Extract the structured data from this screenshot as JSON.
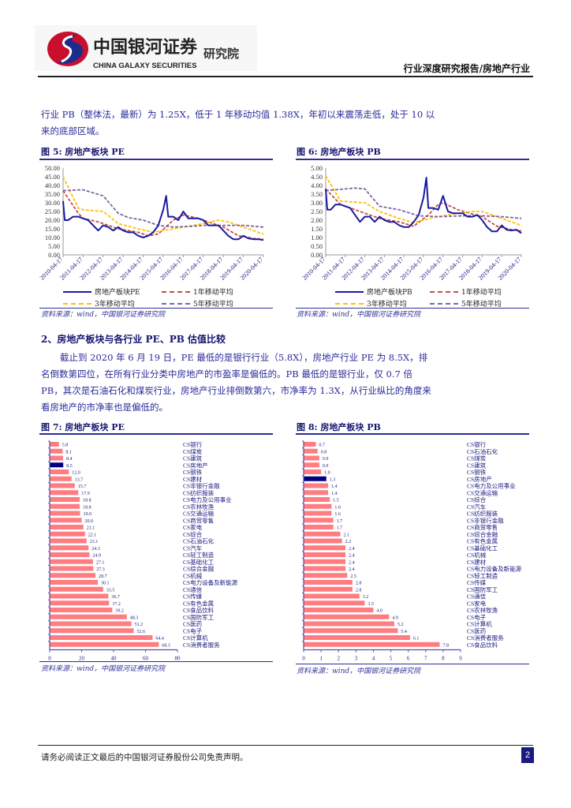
{
  "header": {
    "logo_cn": "中国银河证券",
    "logo_en": "CHINA GALAXY SECURITIES",
    "logo_sub": "研究院",
    "report_type": "行业深度研究报告/房地产行业"
  },
  "intro_paragraph": "行业 PB（整体法，最新）为 1.25X，低于 1 年移动均值 1.38X，年初以来震荡走低，处于 10 以来的底部区域。",
  "section2": {
    "heading": "2、房地产板块与各行业 PE、PB 估值比较",
    "paragraph": "截止到 2020 年 6 月 19 日，PE 最低的是银行行业（5.8X），房地产行业 PE 为 8.5X，排名倒数第四位，在所有行业分类中房地产的市盈率是偏低的。PB 最低的是银行业，仅 0.7 倍 PB，其次是石油石化和煤炭行业，房地产行业排倒数第六，市净率为 1.3X，从行业纵比的角度来看房地产的市净率也是偏低的。"
  },
  "figures": {
    "fig5_title": "图 5:  房地产板块 PE",
    "fig6_title": "图 6:  房地产板块 PB",
    "fig7_title": "图 7:  房地产板块 PE",
    "fig8_title": "图 8:  房地产板块 PB",
    "source": "资料来源：wind，中国银河证券研究院"
  },
  "colors": {
    "main_line": "#1a1aa0",
    "ma1": "#c0504d",
    "ma3": "#ffc000",
    "ma5": "#8064a2",
    "bar": "#ff7c80",
    "bar_highlight": "#000080",
    "text": "#1a1a80"
  },
  "chart_data": [
    {
      "type": "line",
      "id": "fig5",
      "xticks": [
        "2010-04-17",
        "2011-04-17",
        "2012-04-17",
        "2013-04-17",
        "2014-04-17",
        "2015-04-17",
        "2016-04-17",
        "2017-04-17",
        "2018-04-17",
        "2019-04-17",
        "2020-04-17"
      ],
      "xlim": [
        "2010-04-17",
        "2020-04-17"
      ],
      "ylim": [
        0,
        50
      ],
      "yticks": [
        "0.00",
        "5.00",
        "10.00",
        "15.00",
        "20.00",
        "25.00",
        "30.00",
        "35.00",
        "40.00",
        "45.00",
        "50.00"
      ],
      "legend_position": "bottom",
      "series": [
        {
          "name": "房地产板块PE",
          "style": "solid",
          "x": [
            "2010-04-17",
            "2010-05-17",
            "2010-07-17",
            "2010-10-17",
            "2011-01-17",
            "2011-04-17",
            "2011-07-17",
            "2011-10-17",
            "2012-01-17",
            "2012-04-17",
            "2012-07-17",
            "2012-10-17",
            "2013-01-17",
            "2013-04-17",
            "2013-07-17",
            "2013-10-17",
            "2014-01-17",
            "2014-04-17",
            "2014-07-17",
            "2014-10-17",
            "2015-01-17",
            "2015-04-17",
            "2015-06-10",
            "2015-07-17",
            "2015-10-17",
            "2016-01-17",
            "2016-04-17",
            "2016-07-17",
            "2016-10-17",
            "2017-01-17",
            "2017-04-17",
            "2017-07-17",
            "2017-10-17",
            "2018-01-17",
            "2018-04-17",
            "2018-07-17",
            "2018-10-17",
            "2019-01-17",
            "2019-04-17",
            "2019-07-17",
            "2019-10-17",
            "2020-01-17",
            "2020-04-17"
          ],
          "y": [
            31,
            20,
            20,
            22,
            22,
            21,
            20,
            17,
            14,
            17,
            16,
            14,
            16,
            14,
            13,
            13,
            11,
            10,
            11,
            13,
            17,
            26,
            34,
            22,
            22,
            20,
            25,
            21,
            21,
            21,
            20,
            17,
            17,
            17,
            14,
            11,
            9,
            9,
            11,
            9.5,
            9,
            9,
            8.5
          ]
        },
        {
          "name": "1年移动平均",
          "style": "dashed",
          "x": [
            "2010-04-17",
            "2011-01-17",
            "2011-04-17",
            "2012-01-17",
            "2013-01-17",
            "2014-01-17",
            "2014-07-17",
            "2015-01-17",
            "2015-10-17",
            "2016-04-17",
            "2017-01-17",
            "2017-10-17",
            "2018-04-17",
            "2019-01-17",
            "2019-10-17",
            "2020-04-17"
          ],
          "y": [
            37,
            24,
            21,
            19,
            15,
            13,
            11,
            12,
            20,
            23,
            21,
            18,
            16,
            11,
            9.5,
            9
          ]
        },
        {
          "name": "3年移动平均",
          "style": "dashed",
          "x": [
            "2010-04-17",
            "2011-01-17",
            "2011-04-17",
            "2012-04-17",
            "2013-01-17",
            "2014-01-17",
            "2014-10-17",
            "2015-10-17",
            "2016-10-17",
            "2017-04-17",
            "2018-01-17",
            "2018-07-17",
            "2019-07-17",
            "2020-04-17"
          ],
          "y": [
            45,
            27,
            26,
            25,
            18,
            15,
            13,
            15,
            17,
            18,
            20,
            19,
            15,
            12
          ]
        },
        {
          "name": "5年移动平均",
          "style": "dashed",
          "x": [
            "2010-04-17",
            "2011-04-17",
            "2012-04-17",
            "2013-01-17",
            "2013-07-17",
            "2014-04-17",
            "2015-01-17",
            "2015-10-17",
            "2016-10-17",
            "2017-04-17",
            "2018-04-17",
            "2019-04-17",
            "2020-04-17"
          ],
          "y": [
            37,
            37.5,
            34,
            24,
            21.5,
            20,
            17,
            16,
            16.5,
            17,
            17,
            17,
            16
          ]
        }
      ]
    },
    {
      "type": "line",
      "id": "fig6",
      "xticks": [
        "2010-04-17",
        "2011-04-17",
        "2012-04-17",
        "2013-04-17",
        "2014-04-17",
        "2015-04-17",
        "2016-04-17",
        "2017-04-17",
        "2018-04-17",
        "2019-04-17",
        "2020-04-17"
      ],
      "xlim": [
        "2010-04-17",
        "2020-04-17"
      ],
      "ylim": [
        0,
        5
      ],
      "yticks": [
        "0.00",
        "0.50",
        "1.00",
        "1.50",
        "2.00",
        "2.50",
        "3.00",
        "3.50",
        "4.00",
        "4.50",
        "5.00"
      ],
      "legend_position": "bottom",
      "series": [
        {
          "name": "房地产板块PB",
          "style": "solid",
          "x": [
            "2010-04-17",
            "2010-05-17",
            "2010-07-17",
            "2010-10-17",
            "2011-01-17",
            "2011-04-17",
            "2011-07-17",
            "2011-10-17",
            "2012-01-17",
            "2012-04-17",
            "2012-07-17",
            "2012-10-17",
            "2013-01-17",
            "2013-04-17",
            "2013-07-17",
            "2013-10-17",
            "2014-01-17",
            "2014-04-17",
            "2014-07-17",
            "2014-10-17",
            "2015-01-17",
            "2015-04-17",
            "2015-06-10",
            "2015-07-17",
            "2015-10-17",
            "2016-01-17",
            "2016-04-17",
            "2016-07-17",
            "2016-10-17",
            "2017-01-17",
            "2017-04-17",
            "2017-07-17",
            "2017-10-17",
            "2018-01-17",
            "2018-04-17",
            "2018-07-17",
            "2018-10-17",
            "2019-01-17",
            "2019-04-17",
            "2019-07-17",
            "2019-10-17",
            "2020-01-17",
            "2020-04-17"
          ],
          "y": [
            3.8,
            2.6,
            2.6,
            2.9,
            2.9,
            2.8,
            2.7,
            2.3,
            1.9,
            2.2,
            2.2,
            1.9,
            2.2,
            2.0,
            1.9,
            1.9,
            1.7,
            1.6,
            1.6,
            1.9,
            2.3,
            3.3,
            4.45,
            2.7,
            2.7,
            2.6,
            3.4,
            2.5,
            2.4,
            2.4,
            2.4,
            2.2,
            2.2,
            2.3,
            2.0,
            1.6,
            1.35,
            1.35,
            1.7,
            1.45,
            1.4,
            1.45,
            1.25
          ]
        },
        {
          "name": "1年移动平均",
          "style": "dashed",
          "x": [
            "2010-04-17",
            "2011-01-17",
            "2012-01-17",
            "2013-01-17",
            "2014-01-17",
            "2014-10-17",
            "2015-07-17",
            "2016-01-17",
            "2016-04-17",
            "2017-01-17",
            "2017-10-17",
            "2018-04-17",
            "2019-01-17",
            "2019-10-17",
            "2020-04-17"
          ],
          "y": [
            3.8,
            2.9,
            2.5,
            2.1,
            1.9,
            1.65,
            2.3,
            2.9,
            3.0,
            2.6,
            2.35,
            2.2,
            1.65,
            1.45,
            1.38
          ]
        },
        {
          "name": "3年移动平均",
          "style": "dashed",
          "x": [
            "2010-04-17",
            "2011-01-17",
            "2012-04-17",
            "2013-01-17",
            "2014-01-17",
            "2014-10-17",
            "2015-10-17",
            "2016-10-17",
            "2017-10-17",
            "2018-04-17",
            "2019-04-17",
            "2020-04-17"
          ],
          "y": [
            4.55,
            3.1,
            3.0,
            2.5,
            2.1,
            1.85,
            2.15,
            2.35,
            2.5,
            2.5,
            2.1,
            1.7
          ]
        },
        {
          "name": "5年移动平均",
          "style": "dashed",
          "x": [
            "2010-04-17",
            "2011-10-17",
            "2012-04-17",
            "2013-01-17",
            "2014-01-17",
            "2015-01-17",
            "2016-01-17",
            "2017-04-17",
            "2018-04-17",
            "2019-04-17",
            "2020-04-17"
          ],
          "y": [
            3.7,
            3.85,
            3.8,
            2.8,
            2.6,
            2.25,
            2.2,
            2.25,
            2.25,
            2.2,
            2.1
          ]
        }
      ]
    },
    {
      "type": "bar",
      "id": "fig7",
      "orientation": "horizontal",
      "xlim": [
        0,
        80
      ],
      "xticks": [
        "0",
        "20",
        "40",
        "60",
        "80"
      ],
      "highlight": "CS房地产",
      "categories": [
        "CS银行",
        "CS煤炭",
        "CS建筑",
        "CS房地产",
        "CS钢铁",
        "CS建材",
        "CS非银行金融",
        "CS纺织服装",
        "CS电力及公用事业",
        "CS农林牧渔",
        "CS交通运输",
        "CS商贸零售",
        "CS家电",
        "CS综合",
        "CS石油石化",
        "CS汽车",
        "CS轻工制造",
        "CS基础化工",
        "CS综合金融",
        "CS机械",
        "CS电力设备及新能源",
        "CS通信",
        "CS传媒",
        "CS有色金属",
        "CS食品饮料",
        "CS国防军工",
        "CS医药",
        "CS电子",
        "CS计算机",
        "CS消费者服务"
      ],
      "values": [
        5.8,
        8.1,
        8.4,
        8.5,
        12.0,
        13.7,
        15.7,
        17.9,
        18.8,
        18.8,
        19.0,
        20.0,
        21.1,
        22.1,
        23.1,
        24.3,
        24.9,
        27.1,
        27.3,
        28.7,
        30.1,
        33.5,
        36.7,
        37.2,
        39.2,
        48.3,
        51.2,
        52.6,
        64.4,
        68.3
      ]
    },
    {
      "type": "bar",
      "id": "fig8",
      "orientation": "horizontal",
      "xlim": [
        0,
        9
      ],
      "xticks": [
        "0",
        "1",
        "2",
        "3",
        "4",
        "5",
        "6",
        "7",
        "8",
        "9"
      ],
      "highlight": "CS房地产",
      "categories": [
        "CS银行",
        "CS石油石化",
        "CS煤炭",
        "CS建筑",
        "CS钢铁",
        "CS房地产",
        "CS电力及公用事业",
        "CS交通运输",
        "CS综合",
        "CS汽车",
        "CS纺织服装",
        "CS非银行金融",
        "CS商贸零售",
        "CS综合金融",
        "CS有色金属",
        "CS基础化工",
        "CS机械",
        "CS建材",
        "CS电力设备及新能源",
        "CS轻工制造",
        "CS传媒",
        "CS国防军工",
        "CS通信",
        "CS家电",
        "CS农林牧渔",
        "CS电子",
        "CS计算机",
        "CS医药",
        "CS消费者服务",
        "CS食品饮料"
      ],
      "values": [
        0.7,
        0.8,
        0.9,
        0.9,
        1.0,
        1.3,
        1.4,
        1.4,
        1.5,
        1.6,
        1.6,
        1.7,
        1.7,
        2.1,
        2.2,
        2.4,
        2.4,
        2.4,
        2.4,
        2.5,
        2.8,
        2.8,
        3.2,
        3.5,
        4.0,
        4.9,
        5.2,
        5.4,
        6.1,
        7.8
      ]
    }
  ],
  "footer": {
    "disclaimer": "请务必阅读正文最后的中国银河证券股份公司免责声明。",
    "page_number": "2"
  }
}
